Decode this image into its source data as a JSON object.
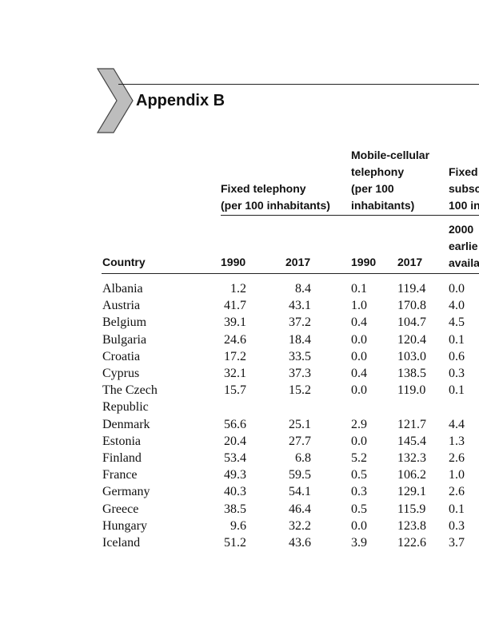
{
  "heading": {
    "title": "Appendix B"
  },
  "table": {
    "group_headers": {
      "fixed": [
        "Fixed telephony",
        "(per 100 inhabitants)"
      ],
      "mobile": [
        "Mobile-cellular",
        "telephony",
        "(per 100",
        "inhabitants)"
      ],
      "third": [
        "Fixed",
        "subsc",
        "100 in"
      ]
    },
    "column_headers": {
      "country": "Country",
      "fixed_1990": "1990",
      "fixed_2017": "2017",
      "mobile_1990": "1990",
      "mobile_2017": "2017",
      "third": [
        "2000",
        "earlie",
        "availa"
      ]
    },
    "rows": [
      {
        "country": "Albania",
        "fixed_1990": "1.2",
        "fixed_2017": "8.4",
        "mobile_1990": "0.1",
        "mobile_2017": "119.4",
        "third": "0.0"
      },
      {
        "country": "Austria",
        "fixed_1990": "41.7",
        "fixed_2017": "43.1",
        "mobile_1990": "1.0",
        "mobile_2017": "170.8",
        "third": "4.0"
      },
      {
        "country": "Belgium",
        "fixed_1990": "39.1",
        "fixed_2017": "37.2",
        "mobile_1990": "0.4",
        "mobile_2017": "104.7",
        "third": "4.5"
      },
      {
        "country": "Bulgaria",
        "fixed_1990": "24.6",
        "fixed_2017": "18.4",
        "mobile_1990": "0.0",
        "mobile_2017": "120.4",
        "third": "0.1"
      },
      {
        "country": "Croatia",
        "fixed_1990": "17.2",
        "fixed_2017": "33.5",
        "mobile_1990": "0.0",
        "mobile_2017": "103.0",
        "third": "0.6"
      },
      {
        "country": "Cyprus",
        "fixed_1990": "32.1",
        "fixed_2017": "37.3",
        "mobile_1990": "0.4",
        "mobile_2017": "138.5",
        "third": "0.3"
      },
      {
        "country": "The Czech",
        "fixed_1990": "15.7",
        "fixed_2017": "15.2",
        "mobile_1990": "0.0",
        "mobile_2017": "119.0",
        "third": "0.1"
      },
      {
        "country": "Republic",
        "fixed_1990": "",
        "fixed_2017": "",
        "mobile_1990": "",
        "mobile_2017": "",
        "third": ""
      },
      {
        "country": "Denmark",
        "fixed_1990": "56.6",
        "fixed_2017": "25.1",
        "mobile_1990": "2.9",
        "mobile_2017": "121.7",
        "third": "4.4"
      },
      {
        "country": "Estonia",
        "fixed_1990": "20.4",
        "fixed_2017": "27.7",
        "mobile_1990": "0.0",
        "mobile_2017": "145.4",
        "third": "1.3"
      },
      {
        "country": "Finland",
        "fixed_1990": "53.4",
        "fixed_2017": "6.8",
        "mobile_1990": "5.2",
        "mobile_2017": "132.3",
        "third": "2.6"
      },
      {
        "country": "France",
        "fixed_1990": "49.3",
        "fixed_2017": "59.5",
        "mobile_1990": "0.5",
        "mobile_2017": "106.2",
        "third": "1.0"
      },
      {
        "country": "Germany",
        "fixed_1990": "40.3",
        "fixed_2017": "54.1",
        "mobile_1990": "0.3",
        "mobile_2017": "129.1",
        "third": "2.6"
      },
      {
        "country": "Greece",
        "fixed_1990": "38.5",
        "fixed_2017": "46.4",
        "mobile_1990": "0.5",
        "mobile_2017": "115.9",
        "third": "0.1"
      },
      {
        "country": "Hungary",
        "fixed_1990": "9.6",
        "fixed_2017": "32.2",
        "mobile_1990": "0.0",
        "mobile_2017": "123.8",
        "third": "0.3"
      },
      {
        "country": "Iceland",
        "fixed_1990": "51.2",
        "fixed_2017": "43.6",
        "mobile_1990": "3.9",
        "mobile_2017": "122.6",
        "third": "3.7"
      }
    ]
  }
}
